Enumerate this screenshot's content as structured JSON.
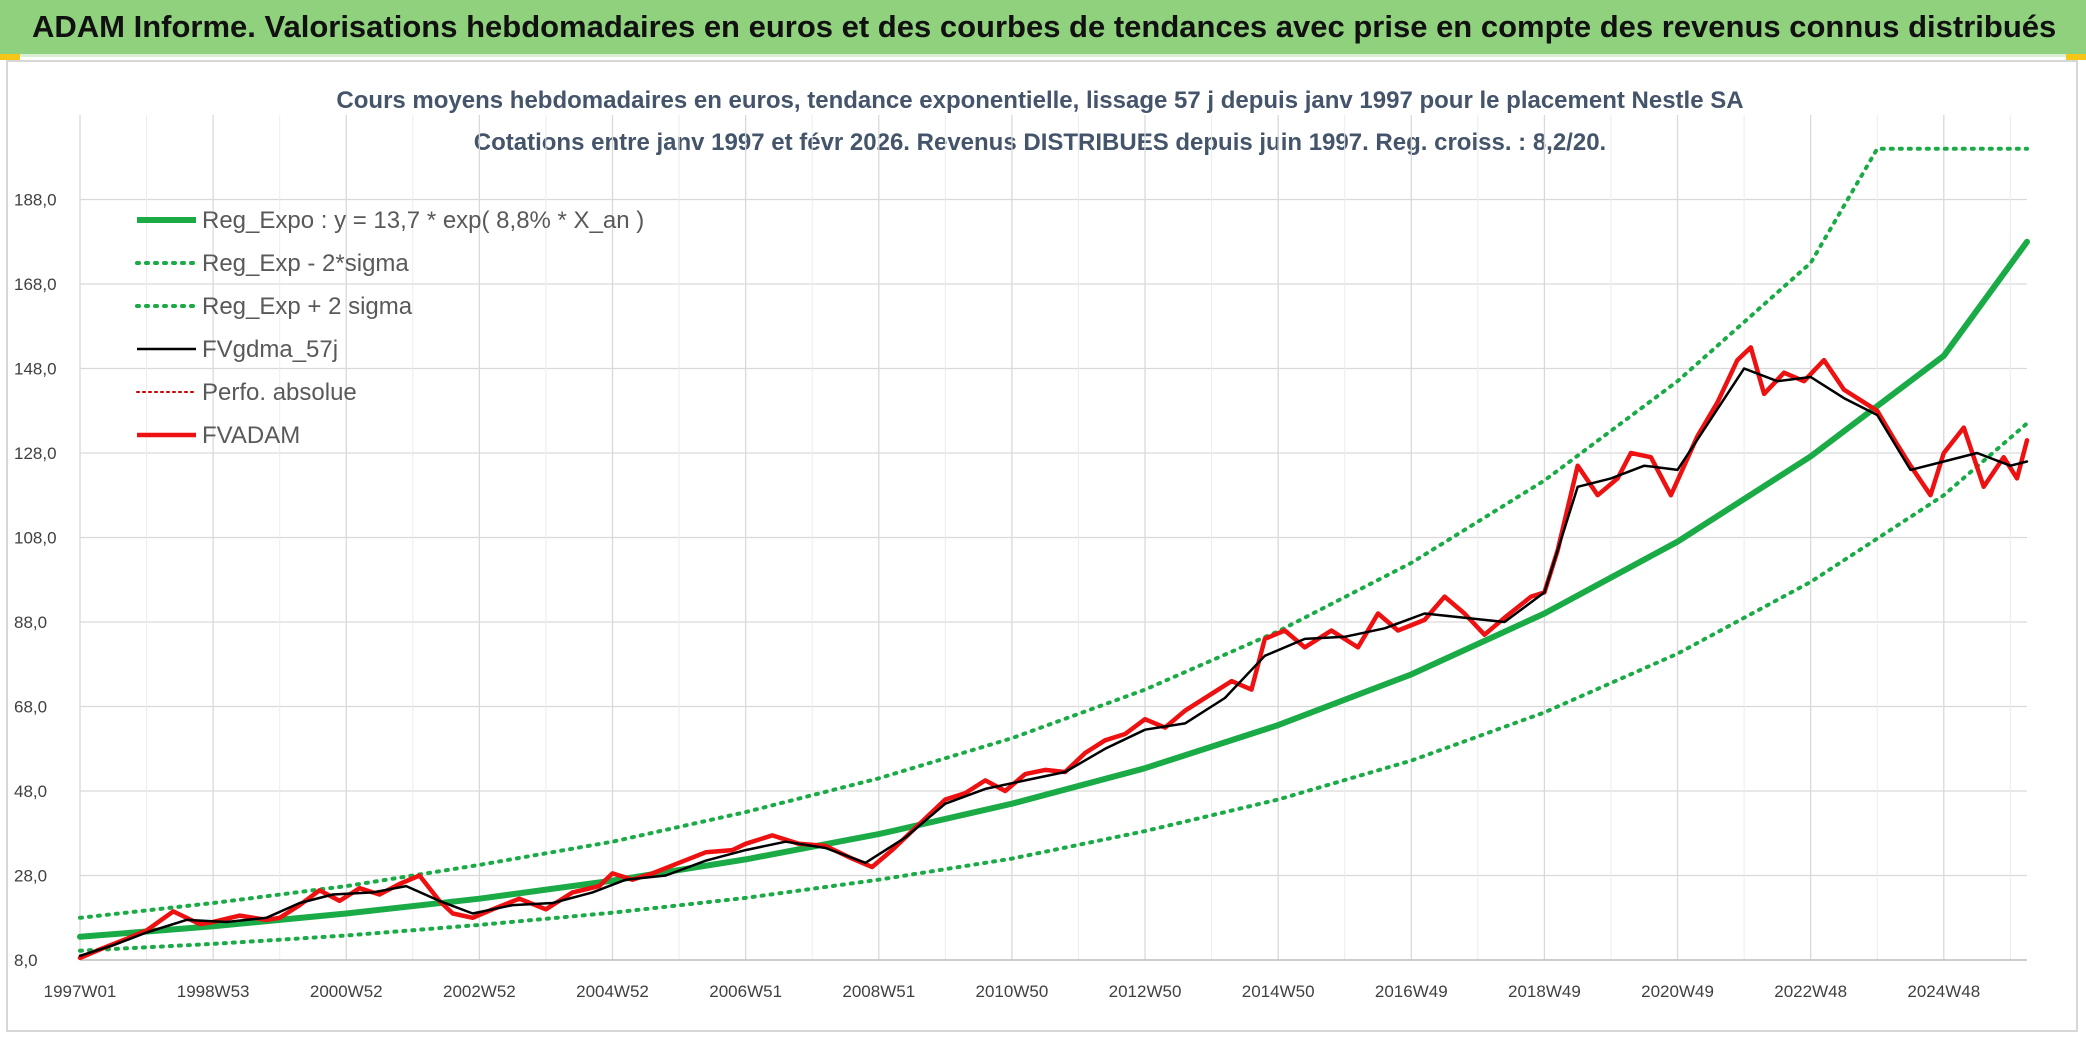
{
  "banner": {
    "title": "ADAM Informe. Valorisations hebdomadaires en euros et des courbes de tendances avec prise en compte des revenus connus distribués"
  },
  "colors": {
    "banner_bg": "#8fd17d",
    "green": "#1aab47",
    "red": "#ee1111",
    "black": "#000000",
    "grid": "#d9d9d9"
  },
  "chart_data": {
    "type": "line",
    "title_line1": "Cours moyens hebdomadaires en euros, tendance exponentielle, lissage 57 j depuis janv 1997 pour le placement Nestle SA",
    "title_line2": "Cotations entre janv 1997 et févr 2026. Revenus DISTRIBUES depuis juin 1997. Reg. croiss. : 8,2/20.",
    "xlim": [
      1997.0,
      2026.25
    ],
    "ylim": [
      8.0,
      208.0
    ],
    "y_ticks": [
      8,
      28,
      48,
      68,
      88,
      108,
      128,
      148,
      168,
      188
    ],
    "y_tick_labels": [
      "8,0",
      "28,0",
      "48,0",
      "68,0",
      "88,0",
      "108,0",
      "128,0",
      "148,0",
      "168,0",
      "188,0"
    ],
    "x_ticks": [
      1997.0,
      1999.0,
      2001.0,
      2003.0,
      2005.0,
      2007.0,
      2009.0,
      2011.0,
      2013.0,
      2015.0,
      2017.0,
      2019.0,
      2021.0,
      2023.0,
      2025.0
    ],
    "x_tick_labels": [
      "1997W01",
      "1998W53",
      "2000W52",
      "2002W52",
      "2004W52",
      "2006W51",
      "2008W51",
      "2010W50",
      "2012W50",
      "2014W50",
      "2016W49",
      "2018W49",
      "2020W49",
      "2022W48",
      "2024W48"
    ],
    "legend": [
      {
        "key": "reg_expo",
        "label": "Reg_Expo : y = 13,7 * exp( 8,8% *  X_an )",
        "color": "#1aab47",
        "style": "solid-thick"
      },
      {
        "key": "reg_minus",
        "label": "Reg_Exp - 2*sigma",
        "color": "#1aab47",
        "style": "dotted"
      },
      {
        "key": "reg_plus",
        "label": "Reg_Exp + 2 sigma",
        "color": "#1aab47",
        "style": "dotted"
      },
      {
        "key": "fvgdma",
        "label": "FVgdma_57j",
        "color": "#000000",
        "style": "solid"
      },
      {
        "key": "perfo",
        "label": "Perfo. absolue",
        "color": "#cc0000",
        "style": "dotted"
      },
      {
        "key": "fvadam",
        "label": "FVADAM",
        "color": "#ee1111",
        "style": "solid-thick"
      }
    ],
    "series": [
      {
        "key": "reg_expo",
        "x": [
          1997,
          1999,
          2001,
          2003,
          2005,
          2007,
          2009,
          2011,
          2013,
          2015,
          2017,
          2019,
          2021,
          2023,
          2025,
          2026.25
        ],
        "y": [
          13.5,
          16.0,
          19.0,
          22.5,
          26.8,
          31.8,
          37.8,
          45.0,
          53.4,
          63.6,
          75.6,
          90.0,
          107.0,
          127.2,
          151.0,
          178.0
        ]
      },
      {
        "key": "reg_plus",
        "x": [
          1997,
          1999,
          2001,
          2003,
          2005,
          2007,
          2009,
          2011,
          2013,
          2015,
          2017,
          2019,
          2021,
          2023,
          2024.0,
          2026.25
        ],
        "y": [
          18.0,
          21.5,
          25.5,
          30.5,
          36.0,
          43.0,
          51.0,
          60.5,
          72.0,
          85.8,
          102.0,
          121.5,
          145.0,
          173.0,
          200.0,
          200.0
        ]
      },
      {
        "key": "reg_minus",
        "x": [
          1997,
          1999,
          2001,
          2003,
          2005,
          2007,
          2009,
          2011,
          2013,
          2015,
          2017,
          2019,
          2021,
          2023,
          2025,
          2026.25
        ],
        "y": [
          10.2,
          11.8,
          13.8,
          16.3,
          19.2,
          22.7,
          27.0,
          32.0,
          38.5,
          46.0,
          55.2,
          66.6,
          80.5,
          97.5,
          118.0,
          135.0
        ]
      },
      {
        "key": "fvadam",
        "x": [
          1997.0,
          1997.3,
          1997.7,
          1998.0,
          1998.4,
          1998.8,
          1999.0,
          1999.4,
          1999.8,
          2000.0,
          2000.3,
          2000.6,
          2000.9,
          2001.2,
          2001.5,
          2001.8,
          2002.1,
          2002.4,
          2002.6,
          2002.9,
          2003.2,
          2003.6,
          2004.0,
          2004.4,
          2004.8,
          2005.0,
          2005.3,
          2005.6,
          2006.0,
          2006.4,
          2006.8,
          2007.0,
          2007.4,
          2007.8,
          2008.2,
          2008.6,
          2008.9,
          2009.2,
          2009.6,
          2010.0,
          2010.3,
          2010.6,
          2010.9,
          2011.2,
          2011.5,
          2011.8,
          2012.1,
          2012.4,
          2012.7,
          2013.0,
          2013.3,
          2013.6,
          2014.0,
          2014.3,
          2014.6,
          2014.8,
          2015.1,
          2015.4,
          2015.8,
          2016.2,
          2016.5,
          2016.8,
          2017.2,
          2017.5,
          2017.8,
          2018.1,
          2018.4,
          2018.8,
          2019.0,
          2019.2,
          2019.5,
          2019.8,
          2020.1,
          2020.3,
          2020.6,
          2020.9,
          2021.1,
          2021.3,
          2021.6,
          2021.9,
          2022.1,
          2022.3,
          2022.6,
          2022.9,
          2023.2,
          2023.5,
          2023.8,
          2024.0,
          2024.3,
          2024.5,
          2024.8,
          2025.0,
          2025.3,
          2025.6,
          2025.9,
          2026.1,
          2026.25
        ],
        "y": [
          8.5,
          10.5,
          13.0,
          15.0,
          19.5,
          16.5,
          17.0,
          18.5,
          17.5,
          18.0,
          21.0,
          24.5,
          22.0,
          25.0,
          23.5,
          26.0,
          28.0,
          22.0,
          19.0,
          18.0,
          20.0,
          22.5,
          20.0,
          24.0,
          25.5,
          28.5,
          27.0,
          28.5,
          31.0,
          33.5,
          34.0,
          35.5,
          37.5,
          35.5,
          35.0,
          32.0,
          30.0,
          34.0,
          40.0,
          46.0,
          47.5,
          50.5,
          48.0,
          52.0,
          53.0,
          52.5,
          57.0,
          60.0,
          61.5,
          65.0,
          63.0,
          67.0,
          71.0,
          74.0,
          72.0,
          84.0,
          86.0,
          82.0,
          86.0,
          82.0,
          90.0,
          86.0,
          88.5,
          94.0,
          90.0,
          85.0,
          89.0,
          94.0,
          95.0,
          105.0,
          125.0,
          118.0,
          122.0,
          128.0,
          127.0,
          118.0,
          125.0,
          132.0,
          140.0,
          150.0,
          153.0,
          142.0,
          147.0,
          145.0,
          150.0,
          143.0,
          140.0,
          138.0,
          130.0,
          125.0,
          118.0,
          128.0,
          134.0,
          120.0,
          127.0,
          122.0,
          131.0
        ]
      },
      {
        "key": "fvgdma",
        "x": [
          1997.0,
          1997.5,
          1998.0,
          1998.6,
          1999.2,
          1999.8,
          2000.3,
          2000.8,
          2001.4,
          2001.9,
          2002.4,
          2002.9,
          2003.5,
          2004.1,
          2004.7,
          2005.2,
          2005.8,
          2006.4,
          2007.0,
          2007.6,
          2008.2,
          2008.8,
          2009.4,
          2010.0,
          2010.6,
          2011.2,
          2011.8,
          2012.4,
          2013.0,
          2013.6,
          2014.2,
          2014.8,
          2015.4,
          2016.0,
          2016.6,
          2017.2,
          2017.8,
          2018.4,
          2019.0,
          2019.5,
          2020.0,
          2020.5,
          2021.0,
          2021.5,
          2022.0,
          2022.5,
          2023.0,
          2023.5,
          2024.0,
          2024.5,
          2025.0,
          2025.5,
          2026.0,
          2026.25
        ],
        "y": [
          9.0,
          11.5,
          14.5,
          17.5,
          17.0,
          18.0,
          21.5,
          23.5,
          24.0,
          25.5,
          22.0,
          19.0,
          21.0,
          21.5,
          24.0,
          27.0,
          28.0,
          31.5,
          34.0,
          36.0,
          34.5,
          31.0,
          37.0,
          45.0,
          48.5,
          50.5,
          52.5,
          58.0,
          62.5,
          64.0,
          70.0,
          80.0,
          84.0,
          84.5,
          86.5,
          90.0,
          89.0,
          88.0,
          95.0,
          120.0,
          122.0,
          125.0,
          124.0,
          136.0,
          148.0,
          145.0,
          146.0,
          141.0,
          137.0,
          124.0,
          126.0,
          128.0,
          125.0,
          126.0
        ]
      }
    ]
  }
}
